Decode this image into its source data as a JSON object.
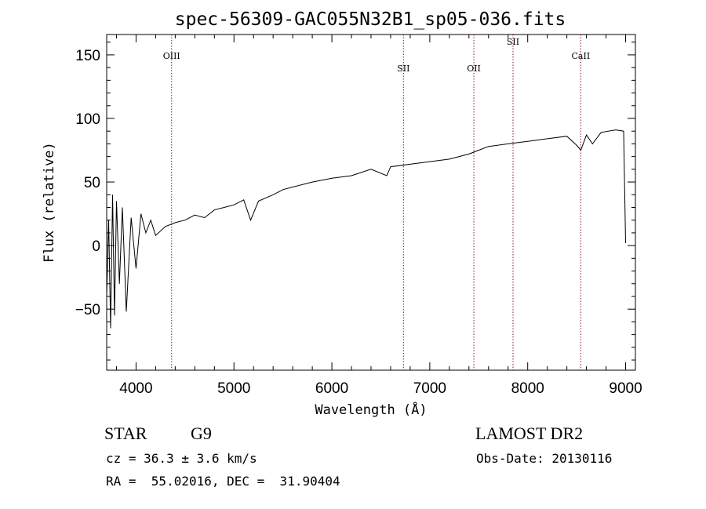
{
  "chart_data": {
    "type": "line",
    "title": "spec-56309-GAC055N32B1_sp05-036.fits",
    "xlabel": "Wavelength (Å)",
    "ylabel": "Flux (relative)",
    "xlim": [
      3700,
      9100
    ],
    "ylim": [
      -98,
      166
    ],
    "x_ticks": [
      "4000",
      "5000",
      "6000",
      "7000",
      "8000",
      "9000"
    ],
    "y_ticks": [
      "150",
      "100",
      "50",
      "0",
      "−50"
    ],
    "x_tick_values": [
      4000,
      5000,
      6000,
      7000,
      8000,
      9000
    ],
    "y_tick_values": [
      150,
      100,
      50,
      0,
      -50
    ],
    "grid": false,
    "line_color": "#000000",
    "marker_color": "#8b1a1a",
    "spectral_lines": [
      {
        "label": "OIII",
        "x": 4363,
        "label_y": 147
      },
      {
        "label": "SII",
        "x": 6731,
        "label_y": 137
      },
      {
        "label": "OII",
        "x": 7450,
        "label_y": 137
      },
      {
        "label": "SII",
        "x": 7850,
        "label_y": 158
      },
      {
        "label": "CaII",
        "x": 8542,
        "label_y": 147
      }
    ],
    "series": [
      {
        "x": [
          3700,
          3720,
          3740,
          3760,
          3780,
          3800,
          3830,
          3860,
          3900,
          3950,
          4000,
          4050,
          4100,
          4150,
          4200,
          4300,
          4400,
          4500,
          4600,
          4700,
          4800,
          4900,
          5000,
          5100,
          5170,
          5250,
          5400,
          5500,
          5600,
          5800,
          6000,
          6200,
          6400,
          6560,
          6600,
          6800,
          7000,
          7200,
          7400,
          7500,
          7600,
          7800,
          8000,
          8200,
          8400,
          8498,
          8542,
          8600,
          8662,
          8750,
          8900,
          8980,
          9000
        ],
        "y": [
          -40,
          20,
          -65,
          40,
          -55,
          35,
          -30,
          30,
          -52,
          22,
          -18,
          25,
          10,
          20,
          8,
          15,
          18,
          20,
          24,
          22,
          28,
          30,
          32,
          36,
          20,
          35,
          40,
          44,
          46,
          50,
          53,
          55,
          60,
          55,
          62,
          64,
          66,
          68,
          72,
          75,
          78,
          80,
          82,
          84,
          86,
          79,
          75,
          87,
          80,
          89,
          91,
          90,
          2
        ]
      }
    ]
  },
  "footer": {
    "object_type": "STAR",
    "subclass": "G9",
    "release": "LAMOST DR2",
    "cz": "cz = 36.3 ± 3.6 km/s",
    "obs_date": "Obs-Date: 20130116",
    "coords": "RA =  55.02016, DEC =  31.90404"
  }
}
